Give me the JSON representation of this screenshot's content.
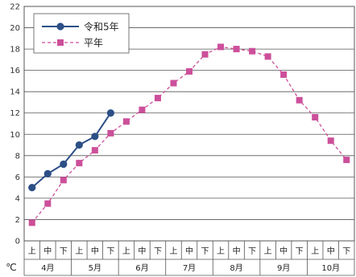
{
  "chart_data": {
    "type": "line",
    "title": "",
    "xlabel": "",
    "ylabel": "",
    "unit": "℃",
    "ylim": [
      0,
      22
    ],
    "ystep": 2,
    "grid": true,
    "legend_position": "top-left",
    "decade_labels": [
      "上",
      "中",
      "下"
    ],
    "months": [
      "4月",
      "5月",
      "6月",
      "7月",
      "8月",
      "9月",
      "10月"
    ],
    "series": [
      {
        "name": "令和5年",
        "color": "#2c4f86",
        "marker": "circle",
        "line": "solid",
        "values": [
          5.0,
          6.3,
          7.2,
          9.0,
          9.8,
          12.0
        ]
      },
      {
        "name": "平年",
        "color": "#cc4f9a",
        "marker": "square",
        "line": "dashed",
        "values": [
          1.7,
          3.5,
          5.7,
          7.3,
          8.5,
          10.1,
          11.2,
          12.3,
          13.4,
          14.8,
          15.9,
          17.5,
          18.2,
          18.0,
          17.8,
          17.3,
          15.6,
          13.2,
          11.6,
          9.4,
          7.6
        ]
      }
    ]
  }
}
